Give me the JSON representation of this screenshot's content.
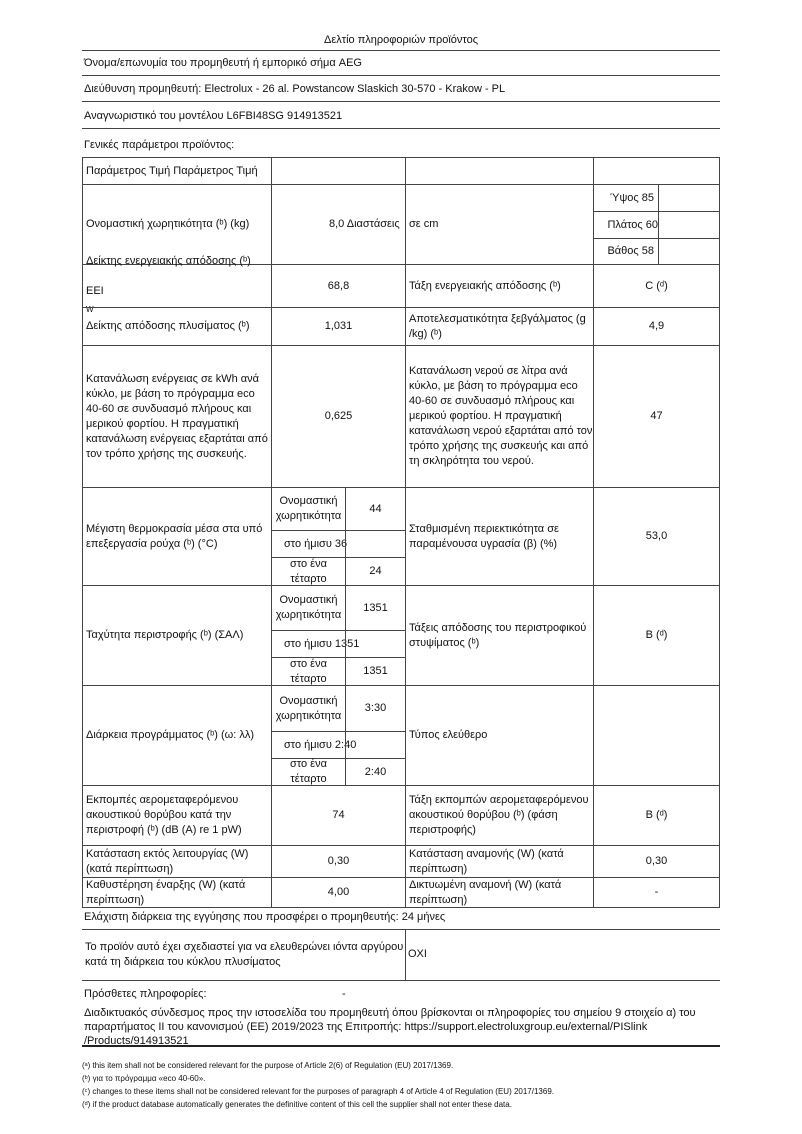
{
  "title": "Δελτίο πληροφοριών προϊόντος",
  "supplier_name": "Όνομα/επωνυμία του προμηθευτή ή εμπορικό σήμα AEG",
  "supplier_address": "Διεύθυνση προμηθευτή: Electrolux - 26 al. Powstancow Slaskich 30-570 - Krakow - PL",
  "model_id": "Αναγνωριστικό του μοντέλου L6FBI48SG 914913521",
  "general_params": "Γενικές παράμετροι προϊόντος:",
  "table": {
    "header": "Παράμετρος Τιμή Παράμετρος Τιμή",
    "capacity_label": "Ονομαστική χωρητικότητα (ᵇ) (kg)",
    "capacity_value": "8,0 Διαστάσεις",
    "dimensions_label": "σε cm",
    "height": "Ύψος 85",
    "width": "Πλάτος 60",
    "depth": "Βάθος 58",
    "eei_label": "Δείκτης ενεργειακής απόδοσης (ᵇ)",
    "eei_label2": "EEI",
    "eei_sub": "W",
    "eei_value": "68,8",
    "energy_class_label": "Τάξη ενεργειακής απόδοσης (ᵇ)",
    "energy_class_value": "C (ᵈ)",
    "wash_perf_label": "Δείκτης απόδοσης πλυσίματος (ᵇ)",
    "wash_perf_value": "1,031",
    "rinse_label": "Αποτελεσματικότητα ξεβγάλματος (g /kg) (ᵇ)",
    "rinse_value": "4,9",
    "energy_cons_label": "Κατανάλωση ενέργειας σε kWh ανά κύκλο, με βάση το πρόγραμμα eco 40-60 σε συνδυασμό πλήρους και μερικού φορτίου. Η πραγματική κατανάλωση ενέργειας εξαρτάται από τον τρόπο χρήσης της συσκευής.",
    "energy_cons_value": "0,625",
    "water_cons_label": "Κατανάλωση νερού σε λίτρα ανά κύκλο, με βάση το πρόγραμμα eco 40-60 σε συνδυασμό πλήρους και μερικού φορτίου. Η πραγματική κατανάλωση νερού εξαρτάται από τον τρόπο χρήσης της συσκευής και από τη σκληρότητα του νερού.",
    "water_cons_value": "47",
    "sub_rated": "Ονομαστική χωρητικότητα",
    "sub_quarter": "στο ένα τέταρτο",
    "temp_label": "Μέγιστη θερμοκρασία μέσα στα υπό επεξεργασία ρούχα (ᵇ) (°C)",
    "temp_rated": "44",
    "temp_half": "στο ήμισυ 36",
    "temp_quarter": "24",
    "moisture_label": "Σταθμισμένη περιεκτικότητα σε παραμένουσα υγρασία (β) (%)",
    "moisture_value": "53,0",
    "spin_label": "Ταχύτητα περιστροφής (ᵇ) (ΣΑΛ)",
    "spin_rated": "1351",
    "spin_half": "στο ήμισυ 1351",
    "spin_quarter": "1351",
    "spin_class_label": "Τάξεις απόδοσης του περιστροφικού στυψίματος (ᵇ)",
    "spin_class_value": "B (ᵈ)",
    "duration_label": "Διάρκεια προγράμματος (ᵇ) (ω: λλ)",
    "duration_rated": "3:30",
    "duration_half": "στο ήμισυ 2:40",
    "duration_quarter": "2:40",
    "type_label": "Τύπος ελεύθερο",
    "noise_label": "Εκπομπές αερομεταφερόμενου ακουστικού θορύβου κατά την περιστροφή (ᵇ) (dB (A) re 1 pW)",
    "noise_value": "74",
    "noise_class_label": "Τάξη εκπομπών αερομεταφερόμενου ακουστικού θορύβου (ᵇ) (φάση περιστροφής)",
    "noise_class_value": "B (ᵈ)",
    "off_label": "Κατάσταση εκτός λειτουργίας (W) (κατά περίπτωση)",
    "off_value": "0,30",
    "standby_label": "Κατάσταση αναμονής (W) (κατά περίπτωση)",
    "standby_value": "0,30",
    "delay_label": "Καθυστέρηση έναρξης (W) (κατά περίπτωση)",
    "delay_value": "4,00",
    "network_label": "Δικτυωμένη αναμονή (W) (κατά περίπτωση)",
    "network_value": "-"
  },
  "guarantee": "Ελάχιστη διάρκεια της εγγύησης που προσφέρει ο προμηθευτής: 24 μήνες",
  "silver_label": "Το προϊόν αυτό έχει σχεδιαστεί για να ελευθερώνει ιόντα αργύρου κατά τη διάρκεια του κύκλου πλυσίματος",
  "silver_value": "OXI",
  "additional_label": "Πρόσθετες πληροφορίες:",
  "additional_value": "-",
  "link_text": "Διαδικτυακός σύνδεσμος προς την ιστοσελίδα του προμηθευτή όπου βρίσκονται οι πληροφορίες του σημείου 9 στοιχείο α) του παραρτήματος II του κανονισμού (ΕΕ) 2019/2023 της Επιτροπής: https://support.electroluxgroup.eu/external/PISlink /Products/914913521",
  "footnotes": [
    "(ᵃ) this item shall not be considered relevant for the purpose of Article 2(6) of Regulation (EU) 2017/1369.",
    "(ᵇ) για το πρόγραμμα «eco 40-60».",
    "(ᶜ) changes to these items shall not be considered relevant for the purposes of paragraph 4 of Article 4 of Regulation (EU) 2017/1369.",
    "(ᵈ) if the product database automatically generates the definitive content of this cell the supplier shall not enter these data."
  ]
}
